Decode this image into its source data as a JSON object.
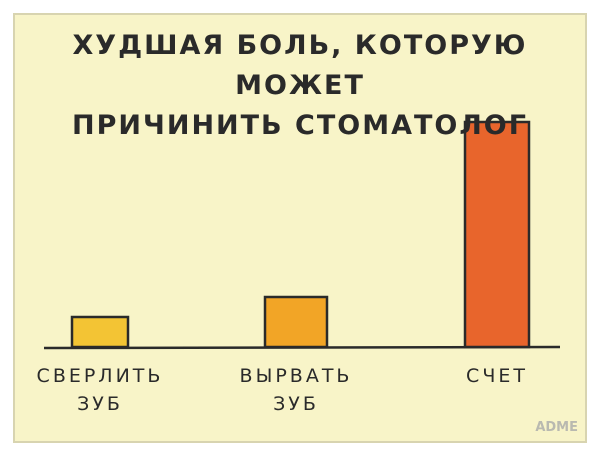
{
  "chart_data": {
    "type": "bar",
    "title": "ХУДШАЯ БОЛЬ, КОТОРУЮ МОЖЕТ\nПРИЧИНИТЬ СТОМАТОЛОГ",
    "categories": [
      "СВЕРЛИТЬ\nЗУБ",
      "ВЫРВАТЬ\nЗУБ",
      "СЧЕТ"
    ],
    "values": [
      30,
      50,
      225
    ],
    "colors": [
      "#f3c434",
      "#f2a526",
      "#e8652c"
    ],
    "ylim": [
      0,
      250
    ],
    "watermark": "ADME"
  }
}
